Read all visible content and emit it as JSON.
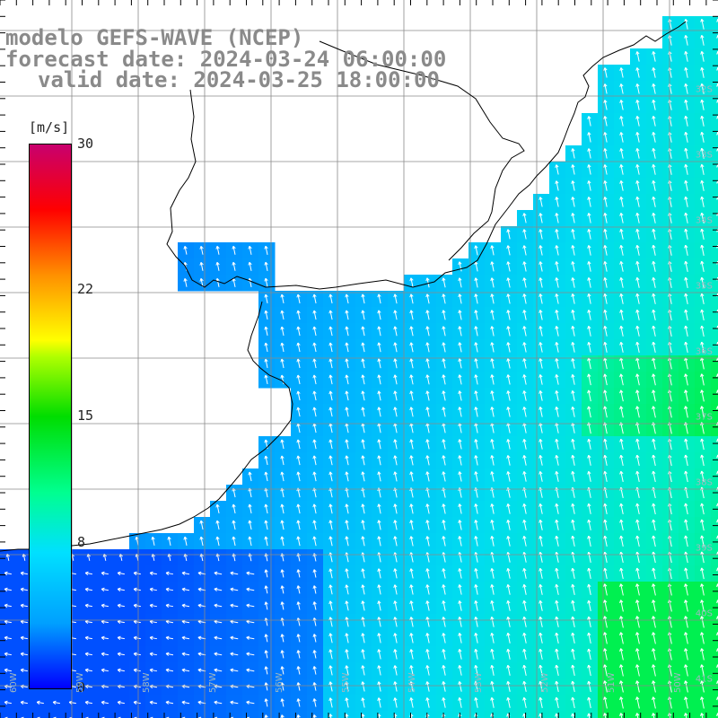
{
  "title": {
    "model": "modelo GEFS-WAVE (NCEP)",
    "forecast": "forecast date: 2024-03-24 06:00:00",
    "valid": "valid date: 2024-03-25 18:00:00"
  },
  "legend": {
    "unit": "[m/s]",
    "ticks": [
      {
        "value": 30,
        "label": "30"
      },
      {
        "value": 22,
        "label": "22"
      },
      {
        "value": 15,
        "label": "15"
      },
      {
        "value": 8,
        "label": "8"
      },
      {
        "value": 0,
        "label": "0"
      }
    ],
    "colors": [
      "#0000ff",
      "#00a0ff",
      "#00e0ff",
      "#00ff90",
      "#00dd00",
      "#ffff00",
      "#ff9000",
      "#ff0000",
      "#c8006e"
    ]
  },
  "map": {
    "lat_labels": [
      "32S",
      "33S",
      "34S",
      "35S",
      "36S",
      "37S",
      "38S",
      "39S",
      "40S",
      "41S"
    ],
    "lon_labels": [
      "60W",
      "59W",
      "58W",
      "57W",
      "56W",
      "55W",
      "54W",
      "53W",
      "52W",
      "51W",
      "50W"
    ],
    "colors": {
      "land": "#ffffff",
      "coast": "#000000",
      "grid": "#808080",
      "arrows": "#ffffff",
      "ocean_low": "#0077ff",
      "ocean_mid": "#00b4ff",
      "ocean_high": "#00e6d2"
    }
  }
}
